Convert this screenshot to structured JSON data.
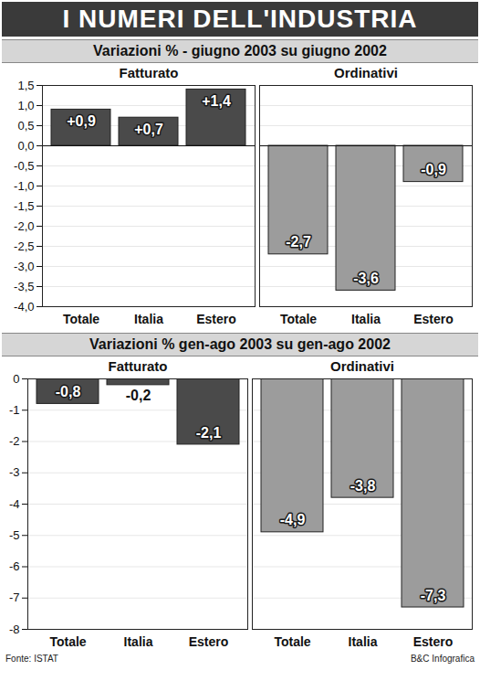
{
  "title": "I NUMERI DELL'INDUSTRIA",
  "source": "Fonte: ISTAT",
  "credit": "B&C Infografica",
  "chart_data": [
    {
      "type": "bar",
      "title": "Variazioni % -  giugno 2003 su giugno 2002",
      "categories": [
        "Totale",
        "Italia",
        "Estero"
      ],
      "series": [
        {
          "name": "Fatturato",
          "color": "#4a4a4a",
          "values": [
            0.9,
            0.7,
            1.4
          ],
          "value_labels": [
            "+0,9",
            "+0,7",
            "+1,4"
          ]
        },
        {
          "name": "Ordinativi",
          "color": "#9c9c9c",
          "values": [
            -2.7,
            -3.6,
            -0.9
          ],
          "value_labels": [
            "-2,7",
            "-3,6",
            "-0,9"
          ]
        }
      ],
      "ylim": [
        -4,
        1.5
      ],
      "yticks": [
        {
          "value": 1.5,
          "label": "1,5"
        },
        {
          "value": 1,
          "label": "1,0"
        },
        {
          "value": 0.5,
          "label": "0,5"
        },
        {
          "value": 0,
          "label": "0,0"
        },
        {
          "value": -0.5,
          "label": "-0,5"
        },
        {
          "value": -1,
          "label": "-1,0"
        },
        {
          "value": -1.5,
          "label": "-1,5"
        },
        {
          "value": -2,
          "label": "-2,0"
        },
        {
          "value": -2.5,
          "label": "-2,5"
        },
        {
          "value": -3,
          "label": "-3,0"
        },
        {
          "value": -3.5,
          "label": "-3,5"
        },
        {
          "value": -4,
          "label": "-4,0"
        }
      ],
      "grid": true,
      "data_labels": true
    },
    {
      "type": "bar",
      "title": "Variazioni % gen-ago 2003 su gen-ago 2002",
      "categories": [
        "Totale",
        "Italia",
        "Estero"
      ],
      "series": [
        {
          "name": "Fatturato",
          "color": "#4a4a4a",
          "values": [
            -0.8,
            -0.2,
            -2.1
          ],
          "value_labels": [
            "-0,8",
            "-0,2",
            "-2,1"
          ]
        },
        {
          "name": "Ordinativi",
          "color": "#9c9c9c",
          "values": [
            -4.9,
            -3.8,
            -7.3
          ],
          "value_labels": [
            "-4,9",
            "-3,8",
            "-7,3"
          ]
        }
      ],
      "ylim": [
        -8,
        0
      ],
      "yticks": [
        0,
        -1,
        -2,
        -3,
        -4,
        -5,
        -6,
        -7,
        -8
      ],
      "grid": true,
      "data_labels": true
    }
  ]
}
